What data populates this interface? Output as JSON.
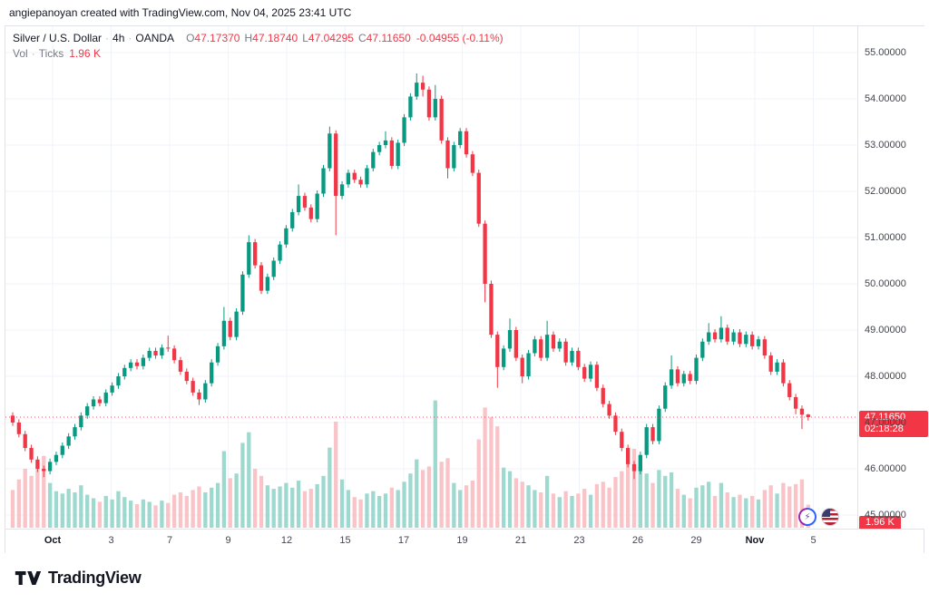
{
  "attribution": "angiepanoyan created with TradingView.com, Nov 04, 2025 23:41 UTC",
  "legend": {
    "symbol": "Silver / U.S. Dollar",
    "sep": "·",
    "interval": "4h",
    "exchange": "OANDA",
    "ohlc": {
      "o_label": "O",
      "o": "47.17370",
      "h_label": "H",
      "h": "47.18740",
      "l_label": "L",
      "l": "47.04295",
      "c_label": "C",
      "c": "47.11650",
      "change": "-0.04955 (-0.11%)"
    },
    "volume_row": {
      "label": "Vol",
      "unit": "Ticks",
      "value": "1.96 K"
    }
  },
  "price_axis": {
    "labels": [
      "55.00000",
      "54.00000",
      "53.00000",
      "52.00000",
      "51.00000",
      "50.00000",
      "49.00000",
      "48.00000",
      "47.00000",
      "46.00000",
      "45.00000"
    ],
    "last_price_badge": {
      "price": "47.11650",
      "countdown": "02:18:28",
      "color": "#f23645"
    },
    "volume_badge": {
      "value": "1.96 K",
      "color": "#f23645"
    }
  },
  "time_axis": {
    "labels": [
      "Oct",
      "3",
      "7",
      "9",
      "12",
      "15",
      "17",
      "19",
      "21",
      "23",
      "26",
      "29",
      "Nov",
      "5"
    ]
  },
  "buttons": {
    "lightning_glyph": "⚡"
  },
  "footer": {
    "brand": "TradingView"
  },
  "chart_data": {
    "type": "candlestick+volume",
    "title": "Silver / U.S. Dollar",
    "interval": "4h",
    "exchange": "OANDA",
    "ylim": [
      45,
      55
    ],
    "grid": true,
    "x_ticks": [
      "Oct",
      "3",
      "7",
      "9",
      "12",
      "15",
      "17",
      "19",
      "21",
      "23",
      "26",
      "29",
      "Nov",
      "5"
    ],
    "y_tick_step": 1,
    "colors": {
      "up": "#089981",
      "down": "#f23645",
      "vol_up": "#9ed9cf",
      "vol_down": "#f9c3c8",
      "last_price_line": "#f23645",
      "grid": "#f0f3fa"
    },
    "last": {
      "open": 47.1737,
      "high": 47.1874,
      "low": 47.04295,
      "close": 47.1165,
      "change": -0.04955,
      "change_pct": -0.11,
      "volume": "1.96 K",
      "countdown": "02:18:28"
    },
    "volume_unit": "K ticks",
    "candles": [
      [
        47.15,
        47.22,
        46.93,
        47.0,
        3.2
      ],
      [
        47.0,
        47.07,
        46.68,
        46.75,
        4.1
      ],
      [
        46.75,
        46.82,
        46.38,
        46.45,
        5.0
      ],
      [
        46.45,
        46.52,
        46.13,
        46.2,
        4.4
      ],
      [
        46.2,
        46.27,
        45.93,
        46.0,
        5.2
      ],
      [
        46.0,
        46.07,
        45.82,
        45.95,
        6.1
      ],
      [
        45.95,
        46.22,
        45.88,
        46.15,
        3.8
      ],
      [
        46.15,
        46.37,
        46.08,
        46.3,
        3.1
      ],
      [
        46.3,
        46.57,
        46.23,
        46.5,
        2.9
      ],
      [
        46.5,
        46.77,
        46.43,
        46.7,
        3.3
      ],
      [
        46.7,
        46.97,
        46.63,
        46.9,
        3.0
      ],
      [
        46.9,
        47.22,
        46.83,
        47.15,
        3.6
      ],
      [
        47.15,
        47.42,
        47.08,
        47.35,
        2.8
      ],
      [
        47.35,
        47.57,
        47.28,
        47.5,
        2.5
      ],
      [
        47.5,
        47.57,
        47.35,
        47.42,
        2.2
      ],
      [
        47.42,
        47.72,
        47.35,
        47.65,
        2.7
      ],
      [
        47.65,
        47.87,
        47.58,
        47.8,
        2.4
      ],
      [
        47.8,
        48.07,
        47.73,
        48.0,
        3.1
      ],
      [
        48.0,
        48.25,
        47.93,
        48.18,
        2.6
      ],
      [
        48.18,
        48.37,
        48.11,
        48.3,
        2.3
      ],
      [
        48.3,
        48.37,
        48.15,
        48.22,
        2.0
      ],
      [
        48.22,
        48.47,
        48.15,
        48.4,
        2.4
      ],
      [
        48.4,
        48.62,
        48.33,
        48.55,
        2.2
      ],
      [
        48.55,
        48.62,
        48.38,
        48.45,
        1.9
      ],
      [
        48.45,
        48.69,
        48.38,
        48.62,
        2.3
      ],
      [
        48.62,
        48.88,
        48.53,
        48.6,
        2.1
      ],
      [
        48.6,
        48.67,
        48.28,
        48.35,
        2.8
      ],
      [
        48.35,
        48.42,
        48.03,
        48.1,
        3.0
      ],
      [
        48.1,
        48.17,
        47.83,
        47.9,
        2.7
      ],
      [
        47.9,
        47.97,
        47.58,
        47.65,
        3.2
      ],
      [
        47.65,
        47.72,
        47.38,
        47.5,
        3.5
      ],
      [
        47.5,
        47.92,
        47.43,
        47.85,
        3.0
      ],
      [
        47.85,
        48.37,
        47.78,
        48.3,
        3.4
      ],
      [
        48.3,
        48.72,
        48.23,
        48.65,
        3.8
      ],
      [
        48.65,
        49.5,
        48.58,
        49.2,
        6.5
      ],
      [
        49.2,
        49.27,
        48.78,
        48.85,
        4.2
      ],
      [
        48.85,
        49.47,
        48.78,
        49.4,
        4.6
      ],
      [
        49.4,
        50.27,
        49.33,
        50.2,
        7.2
      ],
      [
        50.2,
        51.05,
        50.13,
        50.9,
        8.1
      ],
      [
        50.9,
        50.97,
        50.33,
        50.4,
        5.0
      ],
      [
        50.4,
        50.47,
        49.78,
        49.85,
        4.4
      ],
      [
        49.85,
        50.22,
        49.78,
        50.15,
        3.6
      ],
      [
        50.15,
        50.57,
        50.08,
        50.5,
        3.3
      ],
      [
        50.5,
        50.92,
        50.43,
        50.85,
        3.5
      ],
      [
        50.85,
        51.27,
        50.78,
        51.2,
        3.8
      ],
      [
        51.2,
        51.62,
        51.13,
        51.55,
        3.4
      ],
      [
        51.55,
        52.15,
        51.48,
        51.9,
        4.0
      ],
      [
        51.9,
        51.97,
        51.58,
        51.65,
        3.1
      ],
      [
        51.65,
        51.72,
        51.33,
        51.4,
        3.3
      ],
      [
        51.4,
        52.02,
        51.33,
        51.95,
        3.7
      ],
      [
        51.95,
        52.57,
        51.88,
        52.5,
        4.4
      ],
      [
        52.5,
        53.4,
        52.43,
        53.25,
        6.8
      ],
      [
        53.25,
        53.32,
        51.05,
        51.9,
        9.0
      ],
      [
        51.9,
        52.22,
        51.83,
        52.15,
        4.1
      ],
      [
        52.15,
        52.47,
        52.08,
        52.4,
        3.2
      ],
      [
        52.4,
        52.47,
        52.18,
        52.25,
        2.6
      ],
      [
        52.25,
        52.32,
        52.08,
        52.15,
        2.4
      ],
      [
        52.15,
        52.57,
        52.08,
        52.5,
        2.9
      ],
      [
        52.5,
        52.92,
        52.43,
        52.85,
        3.1
      ],
      [
        52.85,
        53.07,
        52.78,
        53.0,
        2.7
      ],
      [
        53.0,
        53.3,
        52.93,
        53.1,
        2.9
      ],
      [
        53.1,
        53.17,
        52.48,
        52.55,
        3.4
      ],
      [
        52.55,
        53.12,
        52.48,
        53.05,
        3.2
      ],
      [
        53.05,
        53.67,
        52.98,
        53.6,
        3.9
      ],
      [
        53.6,
        54.12,
        53.53,
        54.05,
        4.6
      ],
      [
        54.05,
        54.55,
        53.98,
        54.35,
        5.8
      ],
      [
        54.35,
        54.5,
        54.05,
        54.2,
        4.9
      ],
      [
        54.2,
        54.27,
        53.53,
        53.6,
        5.2
      ],
      [
        53.6,
        54.3,
        53.53,
        54.0,
        10.8
      ],
      [
        54.0,
        54.07,
        53.03,
        53.1,
        5.6
      ],
      [
        53.1,
        53.17,
        52.28,
        52.5,
        5.9
      ],
      [
        52.5,
        53.07,
        52.43,
        53.0,
        3.8
      ],
      [
        53.0,
        53.37,
        52.93,
        53.3,
        3.2
      ],
      [
        53.3,
        53.37,
        52.73,
        52.8,
        3.6
      ],
      [
        52.8,
        52.87,
        52.33,
        52.4,
        4.0
      ],
      [
        52.4,
        52.47,
        51.23,
        51.3,
        7.5
      ],
      [
        51.3,
        51.37,
        49.6,
        50.0,
        10.2
      ],
      [
        50.0,
        50.07,
        48.83,
        48.9,
        9.4
      ],
      [
        48.9,
        48.97,
        47.75,
        48.2,
        8.6
      ],
      [
        48.2,
        48.67,
        48.13,
        48.6,
        5.1
      ],
      [
        48.6,
        49.25,
        48.53,
        49.0,
        4.8
      ],
      [
        49.0,
        49.07,
        48.33,
        48.4,
        4.2
      ],
      [
        48.4,
        48.47,
        47.85,
        48.0,
        3.9
      ],
      [
        48.0,
        48.57,
        47.93,
        48.5,
        3.6
      ],
      [
        48.5,
        48.87,
        48.43,
        48.8,
        3.2
      ],
      [
        48.8,
        48.87,
        48.33,
        48.4,
        3.0
      ],
      [
        48.4,
        49.2,
        48.33,
        48.9,
        4.4
      ],
      [
        48.9,
        48.97,
        48.53,
        48.6,
        2.9
      ],
      [
        48.6,
        48.82,
        48.53,
        48.75,
        2.6
      ],
      [
        48.75,
        48.82,
        48.23,
        48.3,
        3.1
      ],
      [
        48.3,
        48.62,
        48.23,
        48.55,
        2.7
      ],
      [
        48.55,
        48.62,
        48.13,
        48.2,
        2.9
      ],
      [
        48.2,
        48.27,
        47.88,
        47.95,
        3.3
      ],
      [
        47.95,
        48.32,
        47.88,
        48.25,
        2.8
      ],
      [
        48.25,
        48.32,
        47.68,
        47.75,
        3.7
      ],
      [
        47.75,
        47.82,
        47.33,
        47.4,
        3.9
      ],
      [
        47.4,
        47.47,
        47.08,
        47.15,
        3.4
      ],
      [
        47.15,
        47.22,
        46.73,
        46.8,
        4.3
      ],
      [
        46.8,
        46.87,
        46.38,
        46.45,
        4.8
      ],
      [
        46.45,
        46.52,
        46.03,
        46.1,
        5.4
      ],
      [
        46.1,
        46.17,
        45.78,
        45.95,
        6.7
      ],
      [
        45.95,
        46.37,
        45.88,
        46.3,
        5.2
      ],
      [
        46.3,
        46.97,
        46.23,
        46.9,
        4.6
      ],
      [
        46.9,
        46.97,
        46.53,
        46.6,
        3.8
      ],
      [
        46.6,
        47.37,
        46.53,
        47.3,
        4.9
      ],
      [
        47.3,
        47.87,
        47.23,
        47.8,
        4.4
      ],
      [
        47.8,
        48.45,
        47.73,
        48.15,
        4.7
      ],
      [
        48.15,
        48.22,
        47.78,
        47.85,
        3.3
      ],
      [
        47.85,
        48.12,
        47.78,
        48.05,
        2.8
      ],
      [
        48.05,
        48.12,
        47.83,
        47.9,
        2.5
      ],
      [
        47.9,
        48.47,
        47.83,
        48.4,
        3.4
      ],
      [
        48.4,
        48.82,
        48.33,
        48.75,
        3.6
      ],
      [
        48.75,
        49.15,
        48.68,
        48.95,
        3.9
      ],
      [
        48.95,
        49.02,
        48.73,
        48.8,
        2.7
      ],
      [
        48.8,
        49.3,
        48.73,
        49.05,
        3.8
      ],
      [
        49.05,
        49.12,
        48.68,
        48.75,
        3.0
      ],
      [
        48.75,
        49.02,
        48.68,
        48.95,
        2.6
      ],
      [
        48.95,
        49.02,
        48.63,
        48.7,
        2.8
      ],
      [
        48.7,
        48.97,
        48.63,
        48.9,
        2.5
      ],
      [
        48.9,
        48.97,
        48.58,
        48.65,
        2.7
      ],
      [
        48.65,
        48.87,
        48.58,
        48.8,
        2.4
      ],
      [
        48.8,
        48.87,
        48.38,
        48.45,
        3.2
      ],
      [
        48.45,
        48.52,
        48.03,
        48.1,
        3.6
      ],
      [
        48.1,
        48.37,
        48.03,
        48.3,
        2.9
      ],
      [
        48.3,
        48.37,
        47.78,
        47.85,
        3.8
      ],
      [
        47.85,
        47.92,
        47.48,
        47.55,
        3.5
      ],
      [
        47.55,
        47.62,
        47.18,
        47.3,
        3.7
      ],
      [
        47.3,
        47.37,
        46.86,
        47.17,
        4.1
      ],
      [
        47.1737,
        47.1874,
        47.04295,
        47.1165,
        1.96
      ]
    ]
  }
}
